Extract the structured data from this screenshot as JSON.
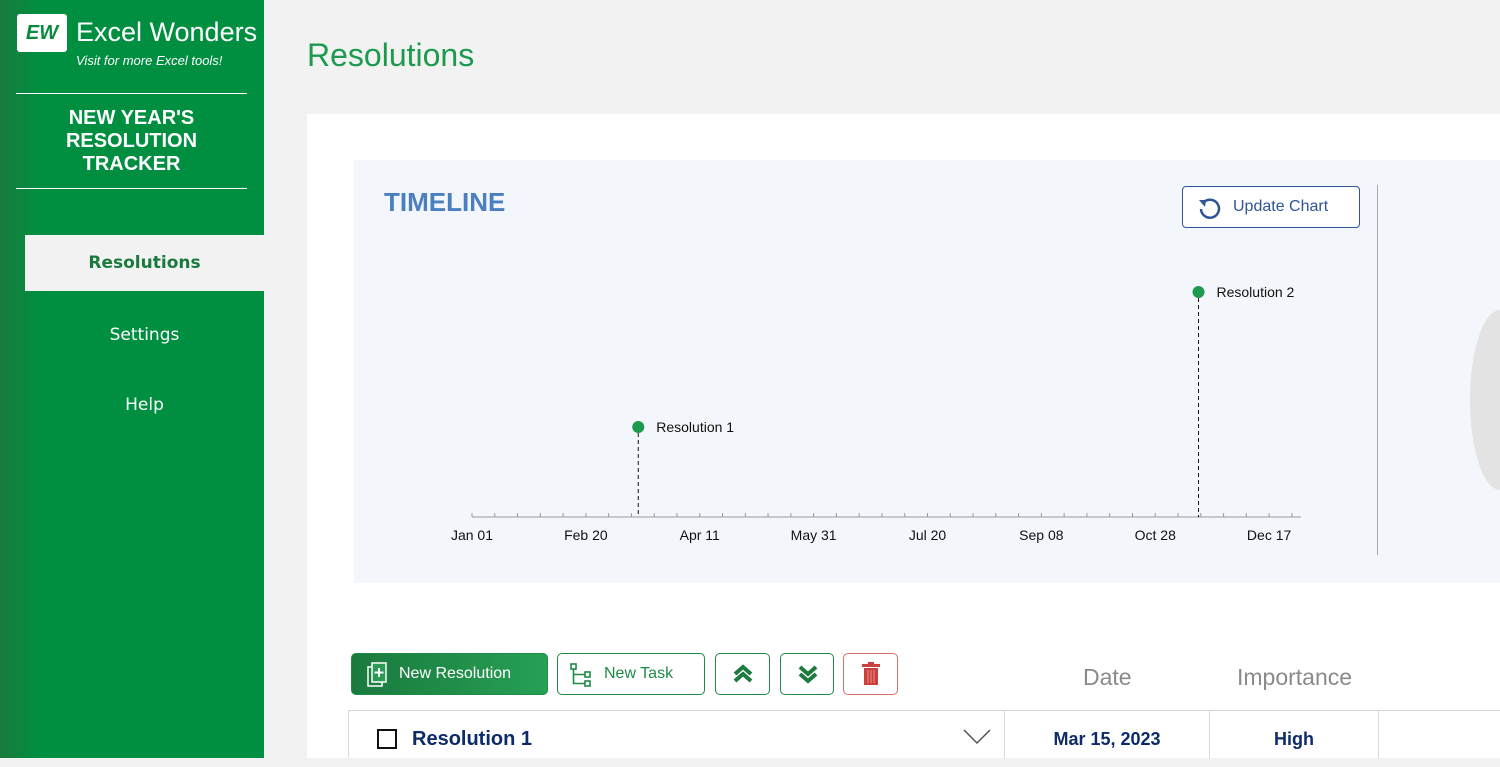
{
  "sidebar": {
    "logo_text": "EW",
    "brand": "Excel Wonders",
    "tagline": "Visit for more Excel tools!",
    "app_title": "NEW YEAR'S RESOLUTION TRACKER",
    "nav": [
      {
        "label": "Resolutions",
        "active": true
      },
      {
        "label": "Settings"
      },
      {
        "label": "Help"
      }
    ]
  },
  "page": {
    "title": "Resolutions"
  },
  "timeline": {
    "title": "TIMELINE",
    "update_button": "Update Chart"
  },
  "chart_data": {
    "type": "scatter",
    "style": "timeline-lollipop",
    "xlim": [
      "2023-01-01",
      "2023-12-31"
    ],
    "x_tick_labels": [
      "Jan 01",
      "Feb 20",
      "Apr 11",
      "May 31",
      "Jul 20",
      "Sep 08",
      "Oct 28",
      "Dec 17"
    ],
    "ylim": [
      0,
      10
    ],
    "points": [
      {
        "label": "Resolution 1",
        "date": "2023-03-15",
        "y": 4
      },
      {
        "label": "Resolution 2",
        "date": "2023-11-16",
        "y": 10
      }
    ],
    "marker_color": "#1e9a4f",
    "grid": false
  },
  "toolbar": {
    "new_resolution": "New Resolution",
    "new_task": "New Task"
  },
  "table": {
    "headers": {
      "date": "Date",
      "importance": "Importance"
    },
    "rows": [
      {
        "name": "Resolution 1",
        "date": "Mar 15, 2023",
        "importance": "High",
        "done": false
      }
    ]
  }
}
